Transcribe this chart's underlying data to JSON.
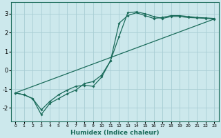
{
  "xlabel": "Humidex (Indice chaleur)",
  "bg_color": "#cce8ec",
  "grid_color": "#a8cdd4",
  "line_color": "#1a6b5a",
  "xlim": [
    -0.5,
    23.5
  ],
  "ylim": [
    -2.7,
    3.6
  ],
  "yticks": [
    -2,
    -1,
    0,
    1,
    2,
    3
  ],
  "xticks": [
    0,
    1,
    2,
    3,
    4,
    5,
    6,
    7,
    8,
    9,
    10,
    11,
    12,
    13,
    14,
    15,
    16,
    17,
    18,
    19,
    20,
    21,
    22,
    23
  ],
  "line1_x": [
    0,
    1,
    2,
    3,
    4,
    5,
    6,
    7,
    8,
    9,
    10,
    11,
    12,
    13,
    14,
    15,
    16,
    17,
    18,
    19,
    20,
    21,
    22,
    23
  ],
  "line1_y": [
    -1.2,
    -1.3,
    -1.5,
    -2.1,
    -1.65,
    -1.3,
    -1.05,
    -0.85,
    -0.8,
    -0.85,
    -0.35,
    0.5,
    2.5,
    2.9,
    3.05,
    2.9,
    2.75,
    2.8,
    2.9,
    2.9,
    2.85,
    2.8,
    2.78,
    2.75
  ],
  "line2_x": [
    0,
    1,
    2,
    3,
    4,
    5,
    6,
    7,
    8,
    9,
    10,
    11,
    12,
    13,
    14,
    15,
    16,
    17,
    18,
    19,
    20,
    21,
    22,
    23
  ],
  "line2_y": [
    -1.2,
    -1.3,
    -1.5,
    -2.35,
    -1.75,
    -1.5,
    -1.25,
    -1.05,
    -0.7,
    -0.6,
    -0.25,
    0.5,
    1.8,
    3.05,
    3.1,
    3.0,
    2.85,
    2.75,
    2.85,
    2.85,
    2.8,
    2.78,
    2.75,
    2.72
  ],
  "line3_x": [
    0,
    23
  ],
  "line3_y": [
    -1.2,
    2.72
  ]
}
